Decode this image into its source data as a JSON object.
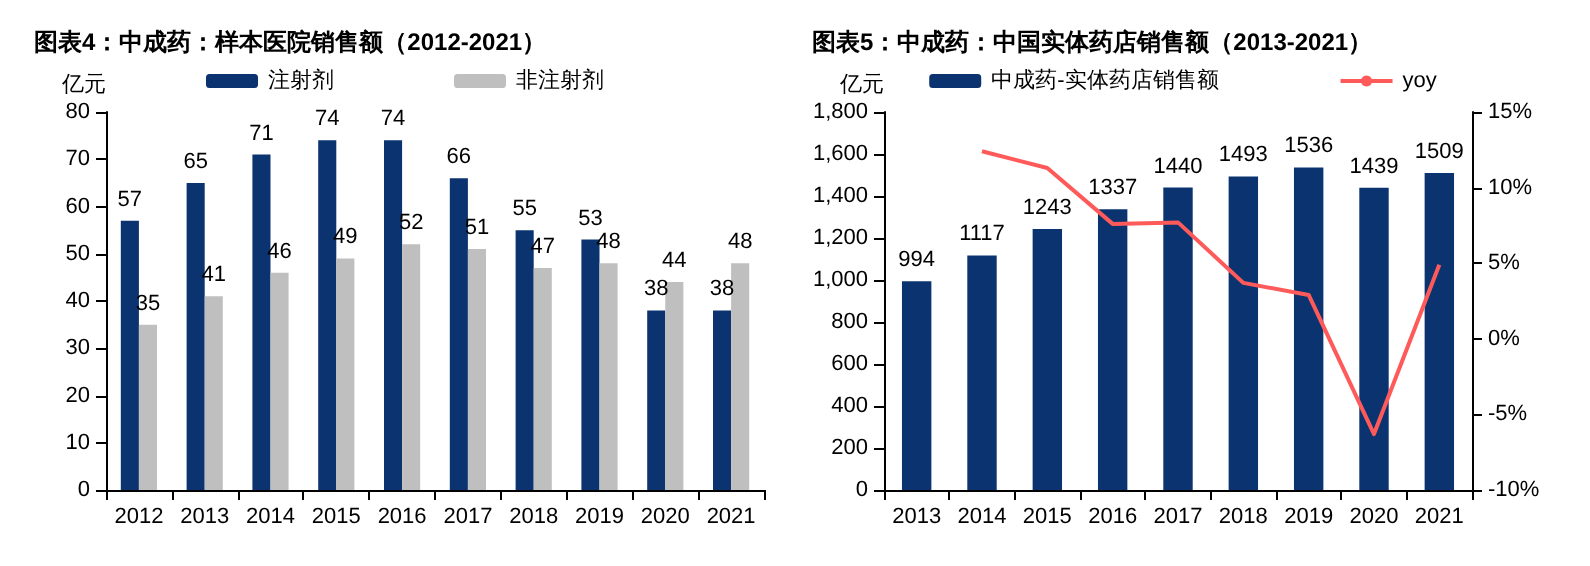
{
  "chart_data": [
    {
      "type": "bar",
      "title": "图表4：中成药：样本医院销售额（2012-2021）",
      "ylabel": "亿元",
      "categories": [
        "2012",
        "2013",
        "2014",
        "2015",
        "2016",
        "2017",
        "2018",
        "2019",
        "2020",
        "2021"
      ],
      "series": [
        {
          "name": "注射剂",
          "color": "#0a3370",
          "values": [
            57,
            65,
            71,
            74,
            74,
            66,
            55,
            53,
            38,
            38
          ]
        },
        {
          "name": "非注射剂",
          "color": "#bfbfbf",
          "values": [
            35,
            41,
            46,
            49,
            52,
            51,
            47,
            48,
            44,
            48
          ]
        }
      ],
      "ylim": [
        0,
        80
      ],
      "yticks": [
        0,
        10,
        20,
        30,
        40,
        50,
        60,
        70,
        80
      ],
      "data_labels": true,
      "legend": "top",
      "grid": false
    },
    {
      "type": "bar",
      "title": "图表5：中成药：中国实体药店销售额（2013-2021）",
      "ylabel": "亿元",
      "categories": [
        "2013",
        "2014",
        "2015",
        "2016",
        "2017",
        "2018",
        "2019",
        "2020",
        "2021"
      ],
      "series": [
        {
          "name": "中成药-实体药店销售额",
          "color": "#0a3370",
          "values": [
            994,
            1117,
            1243,
            1337,
            1440,
            1493,
            1536,
            1439,
            1509
          ],
          "value_labels": [
            "994",
            "1117",
            "1243",
            "1337",
            "1440",
            "1493",
            "1536",
            "1439",
            "1509"
          ]
        },
        {
          "name": "yoy",
          "type": "line",
          "axis": "y2",
          "color": "#ff5a5a",
          "values": [
            null,
            12.4,
            11.3,
            7.6,
            7.7,
            3.7,
            2.9,
            -6.3,
            4.9
          ]
        }
      ],
      "ylim": [
        0,
        1800
      ],
      "yticks": [
        0,
        200,
        400,
        600,
        800,
        {
          "value": 1000,
          "label": "1,000"
        },
        {
          "value": 1200,
          "label": "1,200"
        },
        {
          "value": 1400,
          "label": "1,400"
        },
        {
          "value": 1600,
          "label": "1,600"
        },
        {
          "value": 1800,
          "label": "1,800"
        }
      ],
      "y2lim": [
        -10,
        15
      ],
      "y2ticks": [
        {
          "value": -10,
          "label": "-10%"
        },
        {
          "value": -5,
          "label": "-5%"
        },
        {
          "value": 0,
          "label": "0%"
        },
        {
          "value": 5,
          "label": "5%"
        },
        {
          "value": 10,
          "label": "10%"
        },
        {
          "value": 15,
          "label": "15%"
        }
      ],
      "legend": "top",
      "grid": false,
      "marker": "none"
    }
  ]
}
